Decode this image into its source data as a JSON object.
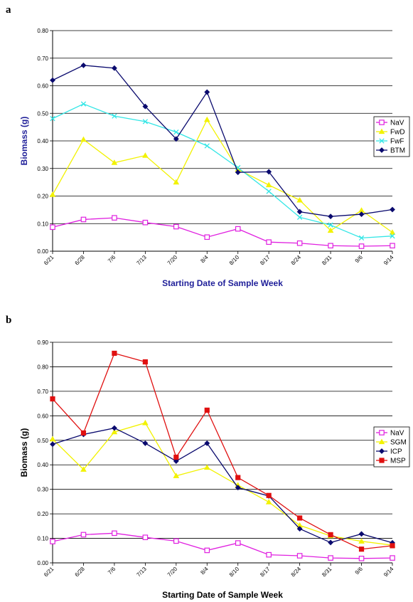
{
  "chart_data": [
    {
      "panel_label": "a",
      "type": "line",
      "categories": [
        "6/21",
        "6/28",
        "7/6",
        "7/13",
        "7/20",
        "8/4",
        "8/10",
        "8/17",
        "8/24",
        "8/31",
        "9/6",
        "9/14"
      ],
      "xlabel": "Starting Date of Sample Week",
      "ylabel": "Biomass (g)",
      "axis_title_color": "#1f1f99",
      "ylim": [
        0,
        0.8
      ],
      "ytick_labels": [
        "0.00",
        "0.10",
        "0.20",
        "0.30",
        "0.40",
        "0.50",
        "0.60",
        "0.70",
        "0.80"
      ],
      "grid": true,
      "legend_position": "right",
      "series": [
        {
          "name": "NaV",
          "color": "#e020e0",
          "marker": "square-open",
          "values": [
            0.087,
            0.115,
            0.121,
            0.104,
            0.089,
            0.051,
            0.081,
            0.033,
            0.029,
            0.02,
            0.018,
            0.02
          ]
        },
        {
          "name": "FwD",
          "color": "#f2f200",
          "marker": "triangle",
          "values": [
            0.205,
            0.405,
            0.321,
            0.347,
            0.25,
            0.477,
            0.297,
            0.24,
            0.185,
            0.075,
            0.148,
            0.068
          ]
        },
        {
          "name": "FwF",
          "color": "#33e6e6",
          "marker": "x",
          "values": [
            0.481,
            0.534,
            0.49,
            0.47,
            0.432,
            0.382,
            0.303,
            0.217,
            0.123,
            0.095,
            0.048,
            0.055
          ]
        },
        {
          "name": "BTM",
          "color": "#0a0a6e",
          "marker": "diamond",
          "values": [
            0.62,
            0.674,
            0.664,
            0.525,
            0.407,
            0.577,
            0.286,
            0.288,
            0.143,
            0.126,
            0.134,
            0.151
          ]
        }
      ]
    },
    {
      "panel_label": "b",
      "type": "line",
      "categories": [
        "6/21",
        "6/28",
        "7/6",
        "7/13",
        "7/20",
        "8/4",
        "8/10",
        "8/17",
        "8/24",
        "8/31",
        "9/6",
        "9/14"
      ],
      "xlabel": "Starting Date of Sample Week",
      "ylabel": "Biomass (g)",
      "axis_title_color": "#000000",
      "ylim": [
        0,
        0.9
      ],
      "ytick_labels": [
        "0.00",
        "0.10",
        "0.20",
        "0.30",
        "0.40",
        "0.50",
        "0.60",
        "0.70",
        "0.80",
        "0.90"
      ],
      "grid": true,
      "legend_position": "right",
      "series": [
        {
          "name": "NaV",
          "color": "#e020e0",
          "marker": "square-open",
          "values": [
            0.087,
            0.115,
            0.121,
            0.104,
            0.089,
            0.051,
            0.081,
            0.033,
            0.029,
            0.02,
            0.018,
            0.02
          ]
        },
        {
          "name": "SGM",
          "color": "#f2f200",
          "marker": "triangle",
          "values": [
            0.505,
            0.381,
            0.534,
            0.571,
            0.355,
            0.389,
            0.317,
            0.248,
            0.153,
            0.11,
            0.088,
            0.072
          ]
        },
        {
          "name": "ICP",
          "color": "#0a0a6e",
          "marker": "diamond",
          "values": [
            0.484,
            0.524,
            0.55,
            0.488,
            0.415,
            0.488,
            0.307,
            0.273,
            0.139,
            0.083,
            0.118,
            0.082
          ]
        },
        {
          "name": "MSP",
          "color": "#e01010",
          "marker": "square",
          "values": [
            0.669,
            0.53,
            0.855,
            0.82,
            0.431,
            0.623,
            0.348,
            0.275,
            0.183,
            0.115,
            0.056,
            0.07
          ]
        }
      ]
    }
  ]
}
